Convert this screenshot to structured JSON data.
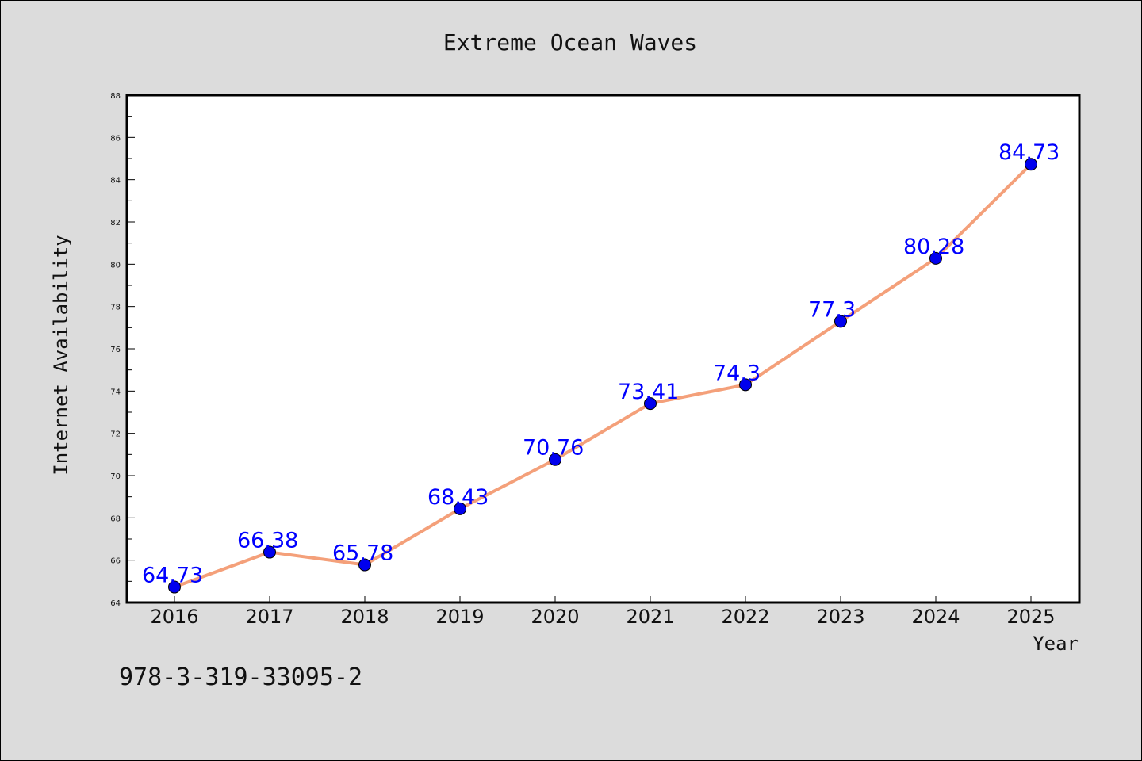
{
  "figure": {
    "footer_text": "978-3-319-33095-2"
  },
  "chart_data": {
    "type": "line",
    "title": "Extreme Ocean Waves",
    "xlabel": "Year",
    "ylabel": "Internet Availability",
    "categories": [
      "2016",
      "2017",
      "2018",
      "2019",
      "2020",
      "2021",
      "2022",
      "2023",
      "2024",
      "2025"
    ],
    "series": [
      {
        "values": [
          64.73,
          66.38,
          65.78,
          68.43,
          70.76,
          73.41,
          74.3,
          77.3,
          80.28,
          84.73
        ],
        "labels": [
          "64.73",
          "66.38",
          "65.78",
          "68.43",
          "70.76",
          "73.41",
          "74.3",
          "77.3",
          "80.28",
          "84.73"
        ],
        "line_color": "#f4a07a",
        "marker_color": "#0000ee",
        "label_color": "#0000ff"
      }
    ],
    "ylim": [
      64,
      88
    ],
    "yticks": [
      64,
      66,
      68,
      70,
      72,
      74,
      76,
      78,
      80,
      82,
      84,
      86,
      88
    ],
    "grid": false,
    "legend": "none"
  }
}
